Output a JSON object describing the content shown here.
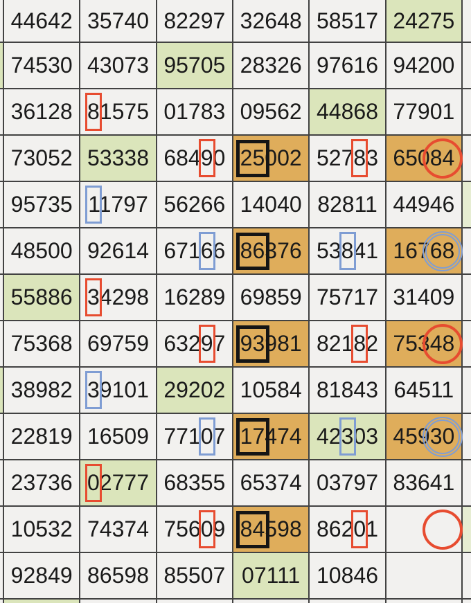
{
  "colors": {
    "border": "#424242",
    "cell_background": "#f2f1ef",
    "green_highlight": "#dbe5bb",
    "green_highlight_light": "#e6edd2",
    "orange_highlight": "#dfad5b",
    "red_annotation": "#e74c30",
    "blue_annotation": "#7f9dd3",
    "black_annotation": "#151515",
    "text": "#1a1a1a"
  },
  "grid": {
    "columns": 6,
    "rows": [
      {
        "left_sliver": "default",
        "right_sliver": "default",
        "cells": [
          {
            "value": "44642"
          },
          {
            "value": "35740"
          },
          {
            "value": "82297"
          },
          {
            "value": "32648"
          },
          {
            "value": "58517"
          },
          {
            "value": "24275",
            "bg": "green"
          }
        ]
      },
      {
        "left_sliver": "green",
        "right_sliver": "default",
        "cells": [
          {
            "value": "74530"
          },
          {
            "value": "43073"
          },
          {
            "value": "95705",
            "bg": "green"
          },
          {
            "value": "28326"
          },
          {
            "value": "97616"
          },
          {
            "value": "94200"
          }
        ]
      },
      {
        "left_sliver": "default",
        "right_sliver": "default",
        "cells": [
          {
            "value": "36128"
          },
          {
            "value": "81575",
            "mark": {
              "shape": "rect",
              "color": "red",
              "start": 0,
              "span": 1
            }
          },
          {
            "value": "01783"
          },
          {
            "value": "09562"
          },
          {
            "value": "44868",
            "bg": "green"
          },
          {
            "value": "77901"
          }
        ]
      },
      {
        "left_sliver": "default",
        "right_sliver": "default",
        "cells": [
          {
            "value": "73052"
          },
          {
            "value": "53338",
            "bg": "green"
          },
          {
            "value": "68490",
            "mark": {
              "shape": "rect",
              "color": "red",
              "start": 3,
              "span": 1
            }
          },
          {
            "value": "25002",
            "bg": "orange",
            "mark": {
              "shape": "rect",
              "color": "black",
              "start": 0,
              "span": 2
            }
          },
          {
            "value": "52783",
            "mark": {
              "shape": "rect",
              "color": "red",
              "start": 3,
              "span": 1
            }
          },
          {
            "value": "65084",
            "bg": "orange",
            "mark": {
              "shape": "circle",
              "color": "red",
              "start": 3,
              "span": 2
            }
          }
        ]
      },
      {
        "left_sliver": "default",
        "right_sliver": "green",
        "cells": [
          {
            "value": "95735"
          },
          {
            "value": "11797",
            "mark": {
              "shape": "rect",
              "color": "blue",
              "start": 0,
              "span": 1
            }
          },
          {
            "value": "56266"
          },
          {
            "value": "14040"
          },
          {
            "value": "82811"
          },
          {
            "value": "44946"
          }
        ]
      },
      {
        "left_sliver": "default",
        "right_sliver": "default",
        "cells": [
          {
            "value": "48500"
          },
          {
            "value": "92614"
          },
          {
            "value": "67166",
            "mark": {
              "shape": "rect",
              "color": "blue",
              "start": 3,
              "span": 1
            }
          },
          {
            "value": "86376",
            "bg": "orange",
            "mark": {
              "shape": "rect",
              "color": "black",
              "start": 0,
              "span": 2
            }
          },
          {
            "value": "53841",
            "mark": {
              "shape": "rect",
              "color": "blue",
              "start": 2,
              "span": 1
            }
          },
          {
            "value": "16768",
            "bg": "orange",
            "mark": {
              "shape": "circle",
              "color": "blue",
              "start": 3,
              "span": 2
            }
          }
        ]
      },
      {
        "left_sliver": "default",
        "right_sliver": "default",
        "cells": [
          {
            "value": "55886",
            "bg": "green"
          },
          {
            "value": "34298",
            "mark": {
              "shape": "rect",
              "color": "red",
              "start": 0,
              "span": 1
            }
          },
          {
            "value": "16289"
          },
          {
            "value": "69859"
          },
          {
            "value": "75717"
          },
          {
            "value": "31409"
          }
        ]
      },
      {
        "left_sliver": "default",
        "right_sliver": "default",
        "cells": [
          {
            "value": "75368"
          },
          {
            "value": "69759"
          },
          {
            "value": "63297",
            "mark": {
              "shape": "rect",
              "color": "red",
              "start": 3,
              "span": 1
            }
          },
          {
            "value": "93981",
            "bg": "orange",
            "mark": {
              "shape": "rect",
              "color": "black",
              "start": 0,
              "span": 2
            }
          },
          {
            "value": "82182",
            "mark": {
              "shape": "rect",
              "color": "red",
              "start": 3,
              "span": 1
            }
          },
          {
            "value": "75348",
            "bg": "orange",
            "mark": {
              "shape": "circle",
              "color": "red",
              "start": 3,
              "span": 2
            }
          }
        ]
      },
      {
        "left_sliver": "green",
        "right_sliver": "default",
        "cells": [
          {
            "value": "38982"
          },
          {
            "value": "39101",
            "mark": {
              "shape": "rect",
              "color": "blue",
              "start": 0,
              "span": 1
            }
          },
          {
            "value": "29202",
            "bg": "green"
          },
          {
            "value": "10584"
          },
          {
            "value": "81843"
          },
          {
            "value": "64511"
          }
        ]
      },
      {
        "left_sliver": "default",
        "right_sliver": "default",
        "cells": [
          {
            "value": "22819"
          },
          {
            "value": "16509"
          },
          {
            "value": "77107",
            "mark": {
              "shape": "rect",
              "color": "blue",
              "start": 3,
              "span": 1
            }
          },
          {
            "value": "17474",
            "bg": "orange",
            "mark": {
              "shape": "rect",
              "color": "black",
              "start": 0,
              "span": 2
            }
          },
          {
            "value": "42303",
            "bg": "green",
            "mark": {
              "shape": "rect",
              "color": "blue",
              "start": 2,
              "span": 1
            }
          },
          {
            "value": "45930",
            "bg": "orange",
            "mark": {
              "shape": "circle",
              "color": "blue",
              "start": 3,
              "span": 2
            }
          }
        ]
      },
      {
        "left_sliver": "default",
        "right_sliver": "default",
        "cells": [
          {
            "value": "23736"
          },
          {
            "value": "02777",
            "bg": "green",
            "mark": {
              "shape": "rect",
              "color": "red",
              "start": 0,
              "span": 1
            }
          },
          {
            "value": "68355"
          },
          {
            "value": "65374"
          },
          {
            "value": "03797"
          },
          {
            "value": "83641"
          }
        ]
      },
      {
        "left_sliver": "default",
        "right_sliver": "green",
        "cells": [
          {
            "value": "10532"
          },
          {
            "value": "74374"
          },
          {
            "value": "75609",
            "mark": {
              "shape": "rect",
              "color": "red",
              "start": 3,
              "span": 1
            }
          },
          {
            "value": "84598",
            "bg": "orange",
            "mark": {
              "shape": "rect",
              "color": "black",
              "start": 0,
              "span": 2
            }
          },
          {
            "value": "86201",
            "mark": {
              "shape": "rect",
              "color": "red",
              "start": 3,
              "span": 1
            }
          },
          {
            "value": "",
            "mark": {
              "shape": "circle",
              "color": "red",
              "start": 3,
              "span": 2
            }
          }
        ]
      },
      {
        "left_sliver": "default",
        "right_sliver": "default",
        "cells": [
          {
            "value": "92849"
          },
          {
            "value": "86598"
          },
          {
            "value": "85507"
          },
          {
            "value": "07111",
            "bg": "green"
          },
          {
            "value": "10846"
          },
          {
            "value": ""
          }
        ]
      }
    ],
    "bottom_partial_row": [
      "green",
      "default",
      "default",
      "default",
      "default",
      "default"
    ]
  }
}
